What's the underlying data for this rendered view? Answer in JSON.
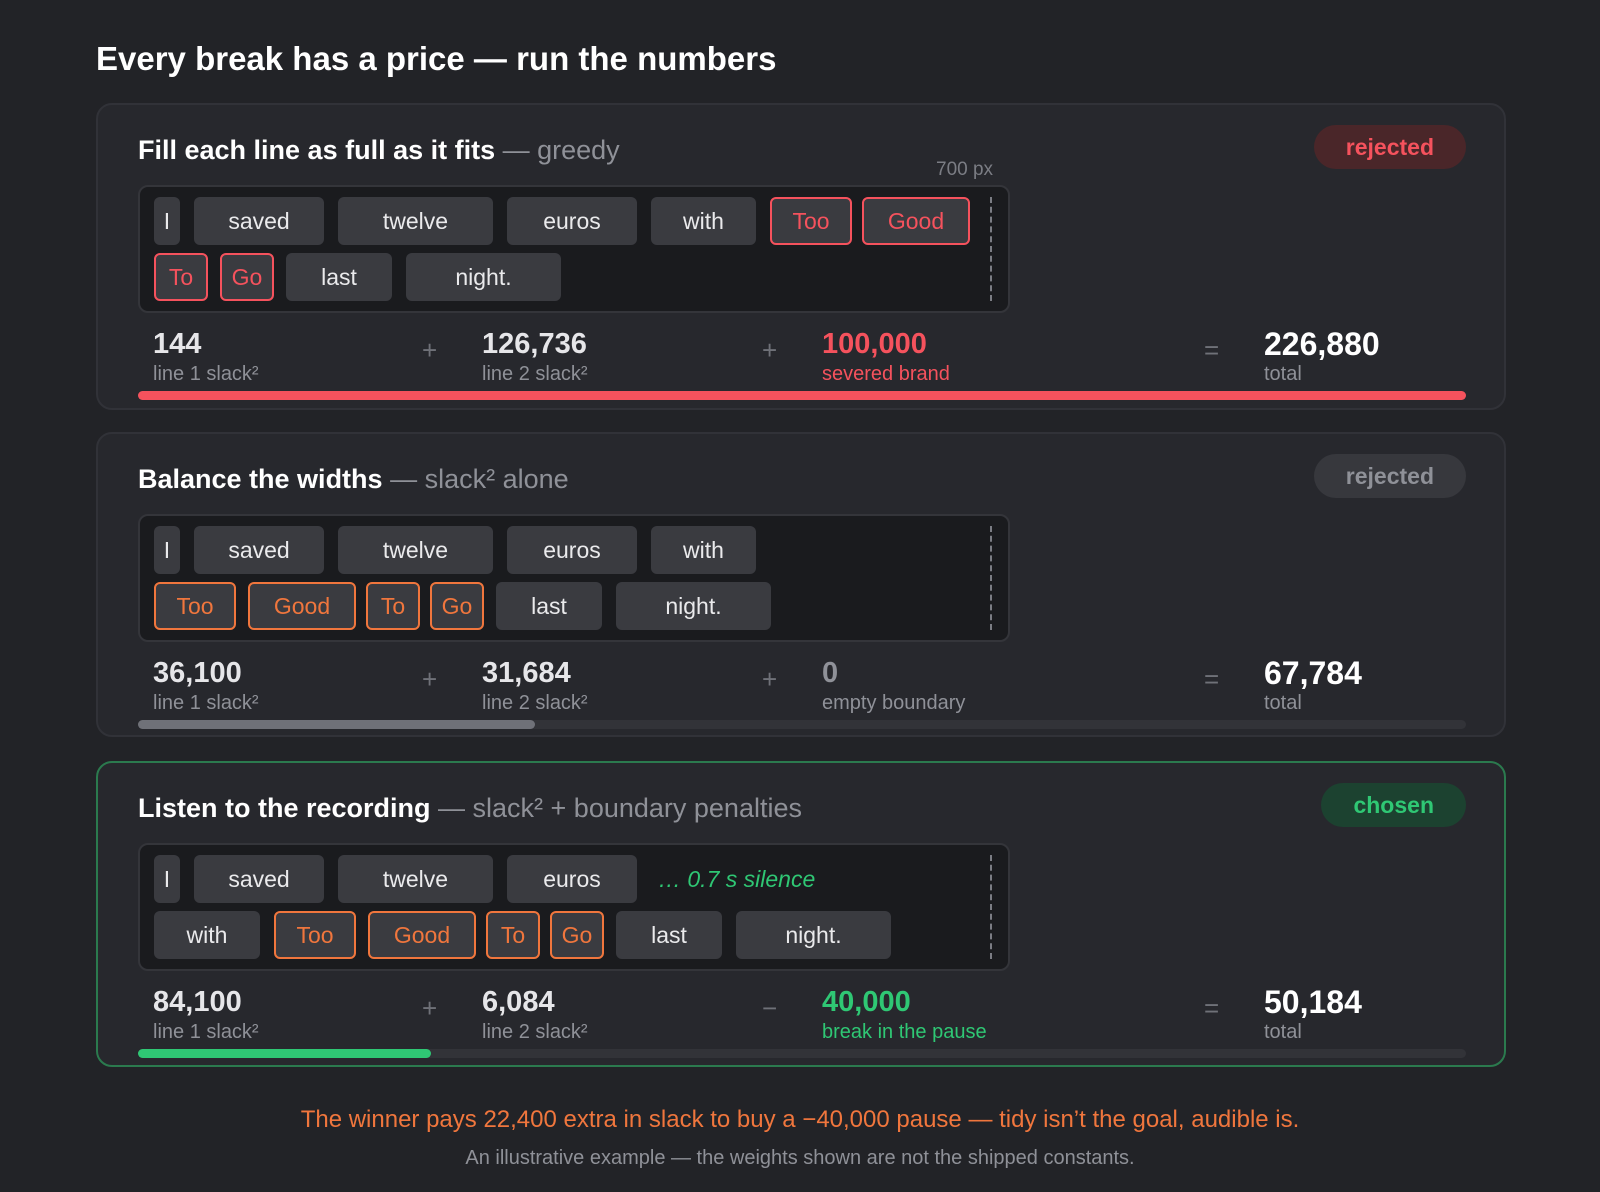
{
  "page": {
    "title": "Every break has a price — run the numbers"
  },
  "cards": [
    {
      "title": "Fill each line as full as it fits",
      "subtitle": " — greedy",
      "badge": "rejected",
      "badge_color": "#f5525d",
      "width_label": "700 px",
      "line1": [
        "I",
        "saved",
        "twelve",
        "euros",
        "with",
        "Too",
        "Good"
      ],
      "line2": [
        "To",
        "Go",
        "last",
        "night."
      ],
      "metrics": [
        {
          "value": "144",
          "label": "line 1 slack²"
        },
        {
          "value": "126,736",
          "label": "line 2 slack²"
        },
        {
          "value": "100,000",
          "label": "severed brand"
        }
      ],
      "ops": [
        "+",
        "+",
        "="
      ],
      "total": {
        "value": "226,880",
        "label": "total"
      },
      "bar_fraction": 1.0,
      "bar_color": "#f5525d"
    },
    {
      "title": "Balance the widths",
      "subtitle": " — slack² alone",
      "badge": "rejected",
      "badge_color": "#8f9198",
      "line1": [
        "I",
        "saved",
        "twelve",
        "euros",
        "with"
      ],
      "line2": [
        "Too",
        "Good",
        "To",
        "Go",
        "last",
        "night."
      ],
      "metrics": [
        {
          "value": "36,100",
          "label": "line 1 slack²"
        },
        {
          "value": "31,684",
          "label": "line 2 slack²"
        },
        {
          "value": "0",
          "label": "empty boundary"
        }
      ],
      "ops": [
        "+",
        "+",
        "="
      ],
      "total": {
        "value": "67,784",
        "label": "total"
      },
      "bar_fraction": 0.299,
      "bar_color": "#6f7178"
    },
    {
      "title": "Listen to the recording",
      "subtitle": " — slack² + boundary penalties",
      "badge": "chosen",
      "badge_color": "#2fc774",
      "line1": [
        "I",
        "saved",
        "twelve",
        "euros"
      ],
      "silence": "… 0.7 s silence",
      "line2": [
        "with",
        "Too",
        "Good",
        "To",
        "Go",
        "last",
        "night."
      ],
      "metrics": [
        {
          "value": "84,100",
          "label": "line 1 slack²"
        },
        {
          "value": "6,084",
          "label": "line 2 slack²"
        },
        {
          "value": "40,000",
          "label": "break in the pause"
        }
      ],
      "ops": [
        "+",
        "−",
        "="
      ],
      "total": {
        "value": "50,184",
        "label": "total"
      },
      "bar_fraction": 0.221,
      "bar_color": "#2fc774"
    }
  ],
  "footer": {
    "main": "The winner pays 22,400 extra in slack to buy a −40,000 pause — tidy isn’t the goal, audible is.",
    "note": "An illustrative example — the weights shown are not the shipped constants."
  }
}
